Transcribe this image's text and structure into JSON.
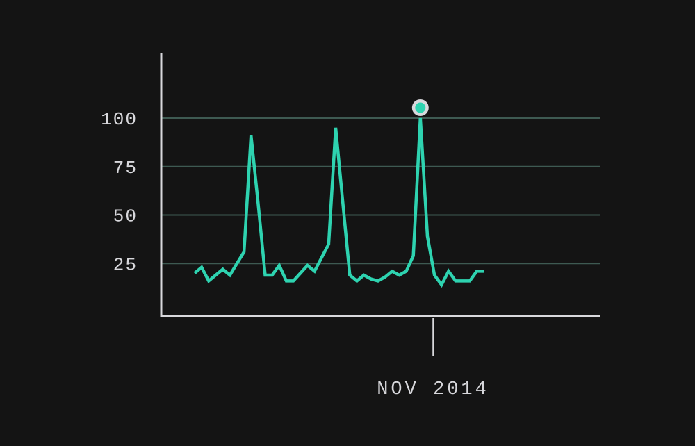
{
  "chart_data": {
    "type": "line",
    "title": "",
    "xlabel": "",
    "ylabel": "",
    "ylim": [
      0,
      120
    ],
    "y_ticks": [
      25,
      50,
      75,
      100
    ],
    "grid": true,
    "x_index_range": [
      0,
      63
    ],
    "series": [
      {
        "color": "#2ed3b0",
        "values": [
          20,
          23,
          16,
          19,
          22,
          19,
          25,
          31,
          91,
          56,
          19,
          19,
          24,
          16,
          16,
          20,
          24,
          21,
          28,
          35,
          95,
          57,
          19,
          16,
          19,
          17,
          16,
          18,
          21,
          19,
          21,
          29,
          100,
          39,
          19,
          14,
          21,
          16,
          16,
          16,
          21,
          21
        ]
      }
    ],
    "highlight": {
      "index": 32,
      "value": 100,
      "label": "NOV 2014"
    },
    "colors": {
      "background": "#141414",
      "axis": "#d8d8dc",
      "grid": "#3e5a52",
      "line": "#2ed3b0",
      "marker_ring": "#d8d8dc"
    }
  }
}
